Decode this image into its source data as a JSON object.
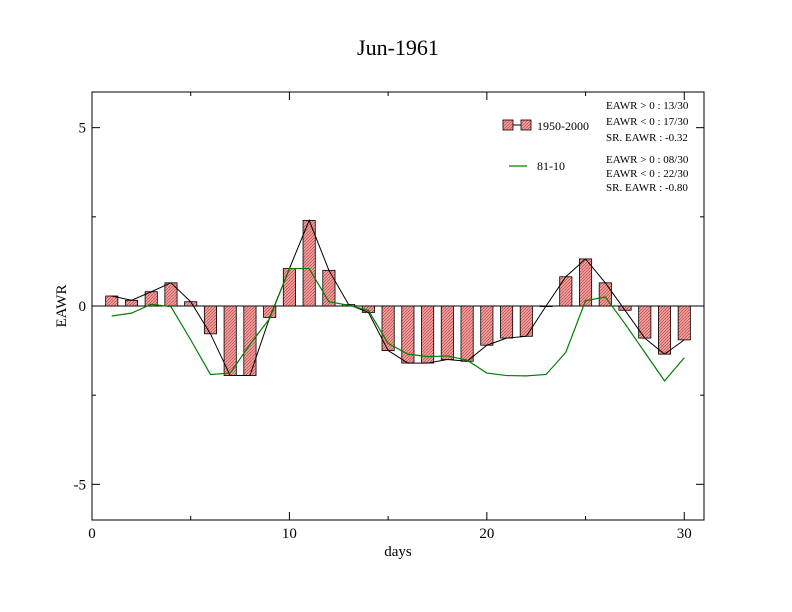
{
  "chart_data": {
    "type": "bar",
    "title": "Jun-1961",
    "xlabel": "days",
    "ylabel": "EAWR",
    "xlim": [
      0,
      31
    ],
    "ylim": [
      -6,
      6
    ],
    "xticks": [
      0,
      10,
      20,
      30
    ],
    "xtick_labels": [
      "0",
      "10",
      "20",
      "30"
    ],
    "yticks": [
      -5,
      0,
      5
    ],
    "ytick_labels": [
      "-5",
      "0",
      "5"
    ],
    "grid": false,
    "legend_position": "top-right",
    "x": [
      1,
      2,
      3,
      4,
      5,
      6,
      7,
      8,
      9,
      10,
      11,
      12,
      13,
      14,
      15,
      16,
      17,
      18,
      19,
      20,
      21,
      22,
      23,
      24,
      25,
      26,
      27,
      28,
      29,
      30
    ],
    "series": [
      {
        "name": "1950-2000",
        "kind": "bar-with-line",
        "color": "#f08080",
        "values": [
          0.28,
          0.16,
          0.4,
          0.65,
          0.12,
          -0.78,
          -1.95,
          -1.95,
          -0.32,
          1.05,
          2.4,
          1.0,
          0.04,
          -0.18,
          -1.25,
          -1.6,
          -1.6,
          -1.5,
          -1.55,
          -1.1,
          -0.9,
          -0.85,
          0.0,
          0.82,
          1.32,
          0.65,
          -0.12,
          -0.9,
          -1.35,
          -0.95
        ]
      },
      {
        "name": "81-10",
        "kind": "line",
        "color": "#008000",
        "values": [
          -0.28,
          -0.2,
          0.05,
          -0.02,
          -0.95,
          -1.92,
          -1.88,
          -1.08,
          -0.35,
          1.05,
          1.05,
          0.12,
          0.02,
          -0.12,
          -1.05,
          -1.35,
          -1.42,
          -1.4,
          -1.52,
          -1.88,
          -1.95,
          -1.96,
          -1.92,
          -1.3,
          0.15,
          0.25,
          -0.5,
          -1.3,
          -2.1,
          -1.45
        ]
      }
    ],
    "stats": {
      "set1": [
        "EAWR > 0 : 13/30",
        "EAWR < 0 : 17/30",
        "SR. EAWR : -0.32"
      ],
      "set2": [
        "EAWR > 0 : 08/30",
        "EAWR < 0 : 22/30",
        "SR. EAWR : -0.80"
      ]
    }
  }
}
